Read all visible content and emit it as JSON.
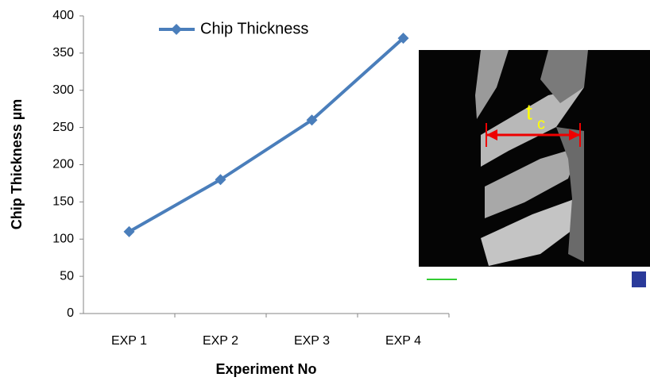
{
  "chart_data": {
    "type": "line",
    "x_label": "Experiment No",
    "y_label": "Chip Thickness µm",
    "categories": [
      "EXP 1",
      "EXP 2",
      "EXP 3",
      "EXP 4"
    ],
    "series": [
      {
        "name": "Chip Thickness",
        "color": "#4a7ebb",
        "values": [
          110,
          180,
          260,
          370
        ]
      }
    ],
    "ylim": [
      0,
      400
    ],
    "yticks": [
      0,
      50,
      100,
      150,
      200,
      250,
      300,
      350,
      400
    ],
    "grid": false,
    "legend": "top",
    "inset_label": "t",
    "inset_label_sub": "c"
  }
}
